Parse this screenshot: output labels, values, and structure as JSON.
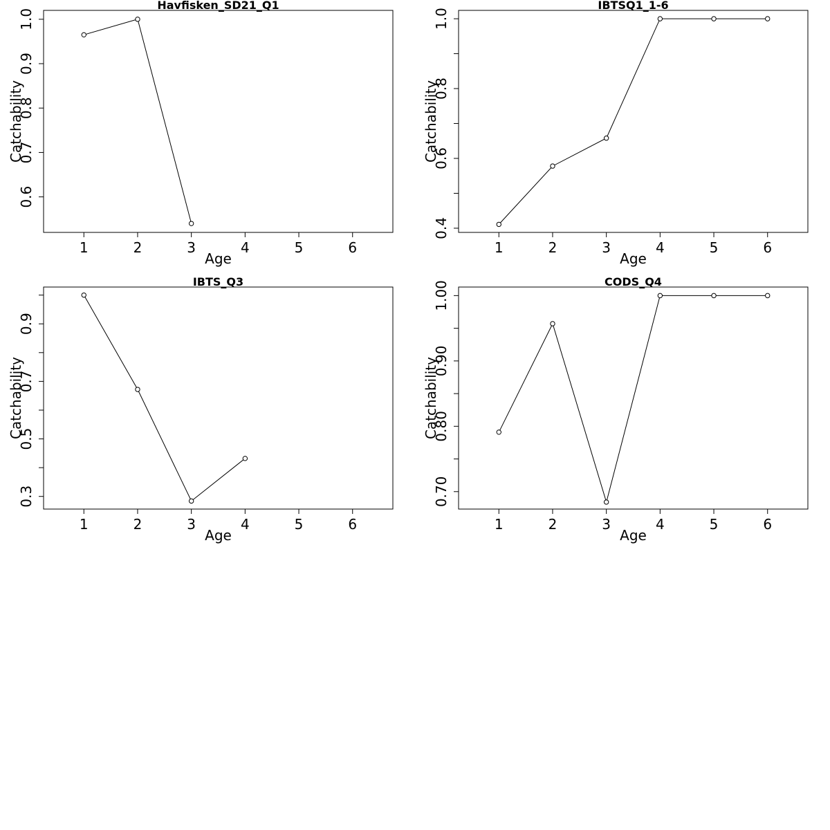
{
  "chart_data": [
    {
      "type": "line",
      "title": "Havfisken_SD21_Q1",
      "xlabel": "Age",
      "ylabel": "Catchability",
      "xlim": [
        0.25,
        6.75
      ],
      "ylim": [
        0.52,
        1.02
      ],
      "xticks": [
        1,
        2,
        3,
        4,
        5,
        6
      ],
      "yticks": [
        0.6,
        0.7,
        0.8,
        0.9,
        1.0
      ],
      "ytick_labels": [
        "0.6",
        "0.7",
        "0.8",
        "0.9",
        "1.0"
      ],
      "yticks_minor": [],
      "x": [
        1,
        2,
        3
      ],
      "y": [
        0.965,
        1.0,
        0.54
      ],
      "grid": false
    },
    {
      "type": "line",
      "title": "IBTSQ1_1-6",
      "xlabel": "Age",
      "ylabel": "Catchability",
      "xlim": [
        0.25,
        6.75
      ],
      "ylim": [
        0.388,
        1.024
      ],
      "xticks": [
        1,
        2,
        3,
        4,
        5,
        6
      ],
      "yticks": [
        0.4,
        0.6,
        0.8,
        1.0
      ],
      "ytick_labels": [
        "0.4",
        "0.6",
        "0.8",
        "1.0"
      ],
      "yticks_minor": [
        0.5,
        0.7,
        0.9
      ],
      "x": [
        1,
        2,
        3,
        4,
        5,
        6
      ],
      "y": [
        0.411,
        0.578,
        0.658,
        1.0,
        1.0,
        1.0
      ],
      "grid": false
    },
    {
      "type": "line",
      "title": "IBTS_Q3",
      "xlabel": "Age",
      "ylabel": "Catchability",
      "xlim": [
        0.25,
        6.75
      ],
      "ylim": [
        0.256,
        1.028
      ],
      "xticks": [
        1,
        2,
        3,
        4,
        5,
        6
      ],
      "yticks": [
        0.3,
        0.5,
        0.7,
        0.9
      ],
      "ytick_labels": [
        "0.3",
        "0.5",
        "0.7",
        "0.9"
      ],
      "yticks_minor": [
        0.4,
        0.6,
        0.8,
        1.0
      ],
      "x": [
        1,
        2,
        3,
        4
      ],
      "y": [
        1.0,
        0.672,
        0.284,
        0.432
      ],
      "grid": false
    },
    {
      "type": "line",
      "title": "CODS_Q4",
      "xlabel": "Age",
      "ylabel": "Catchability",
      "xlim": [
        0.25,
        6.75
      ],
      "ylim": [
        0.6733,
        1.0131
      ],
      "xticks": [
        1,
        2,
        3,
        4,
        5,
        6
      ],
      "yticks": [
        0.7,
        0.8,
        0.9,
        1.0
      ],
      "ytick_labels": [
        "0.70",
        "0.80",
        "0.90",
        "1.00"
      ],
      "yticks_minor": [
        0.75,
        0.85,
        0.95
      ],
      "x": [
        1,
        2,
        3,
        4,
        5,
        6
      ],
      "y": [
        0.791,
        0.957,
        0.684,
        1.0,
        1.0,
        1.0
      ],
      "grid": false
    }
  ]
}
